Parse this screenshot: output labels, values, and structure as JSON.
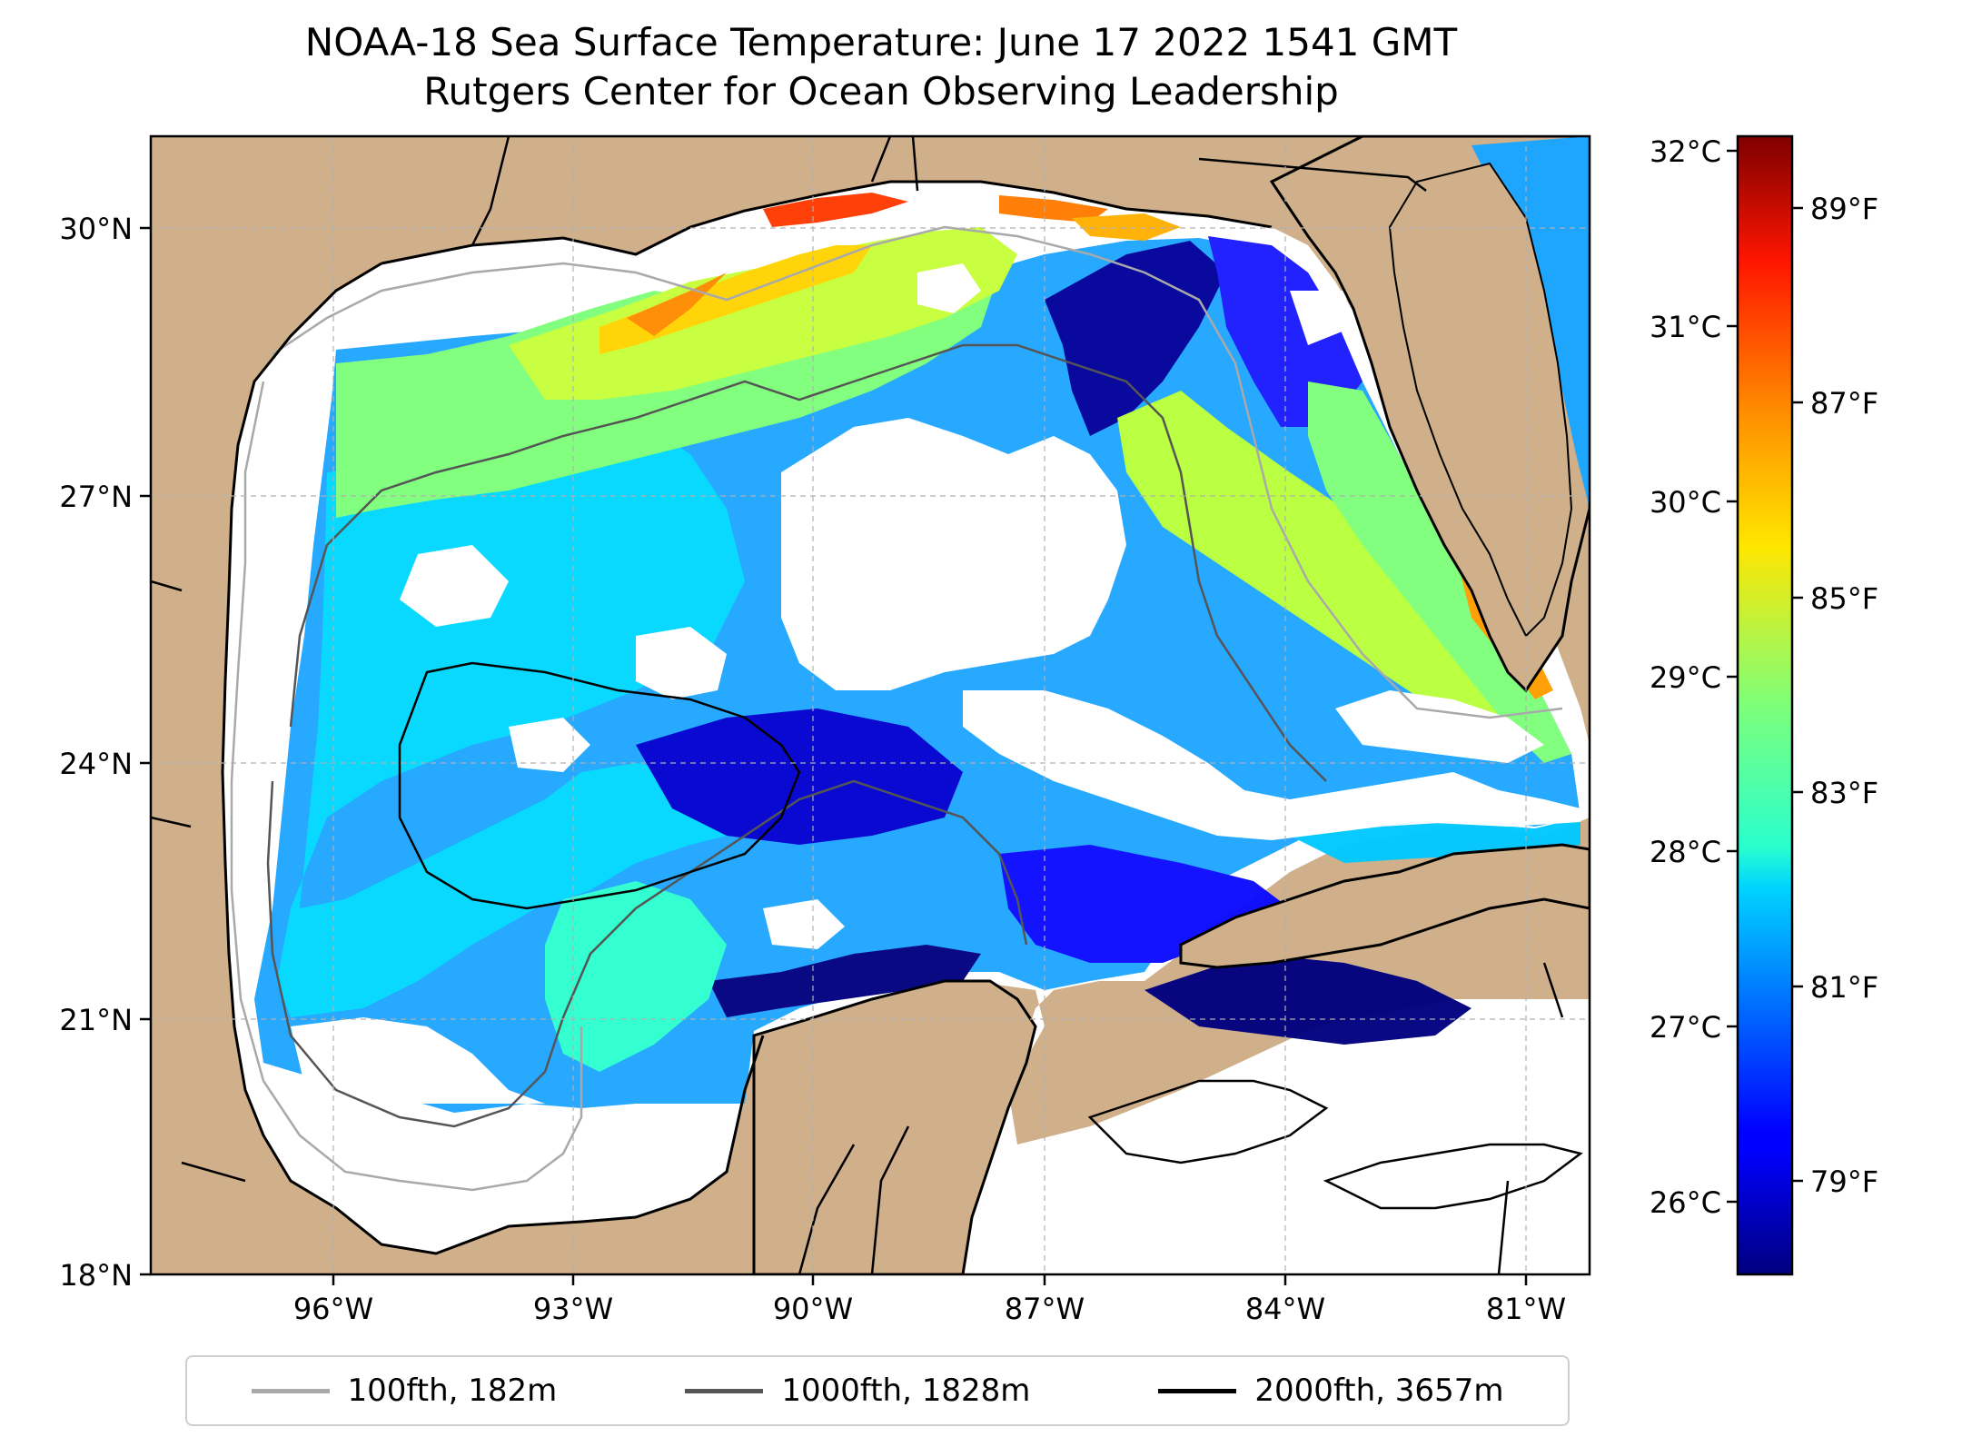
{
  "title": {
    "line1": "NOAA-18 Sea Surface Temperature: June 17 2022 1541 GMT",
    "line2": "Rutgers Center for Ocean Observing Leadership"
  },
  "map": {
    "lat_ticks": [
      "30°N",
      "27°N",
      "24°N",
      "21°N",
      "18°N"
    ],
    "lon_ticks": [
      "96°W",
      "93°W",
      "90°W",
      "87°W",
      "84°W",
      "81°W"
    ],
    "land_color": "#cfb08a",
    "cloud_color": "#ffffff",
    "grid_color": "#b0b0b0"
  },
  "colorbar": {
    "celsius_ticks": [
      "32°C",
      "31°C",
      "30°C",
      "29°C",
      "28°C",
      "27°C",
      "26°C"
    ],
    "fahrenheit_ticks": [
      "89°F",
      "87°F",
      "85°F",
      "83°F",
      "81°F",
      "79°F"
    ],
    "colormap": "jet"
  },
  "legend": {
    "items": [
      {
        "label": "100fth, 182m",
        "color": "#a9a9a9"
      },
      {
        "label": "1000fth, 1828m",
        "color": "#555555"
      },
      {
        "label": "2000fth, 3657m",
        "color": "#000000"
      }
    ]
  }
}
